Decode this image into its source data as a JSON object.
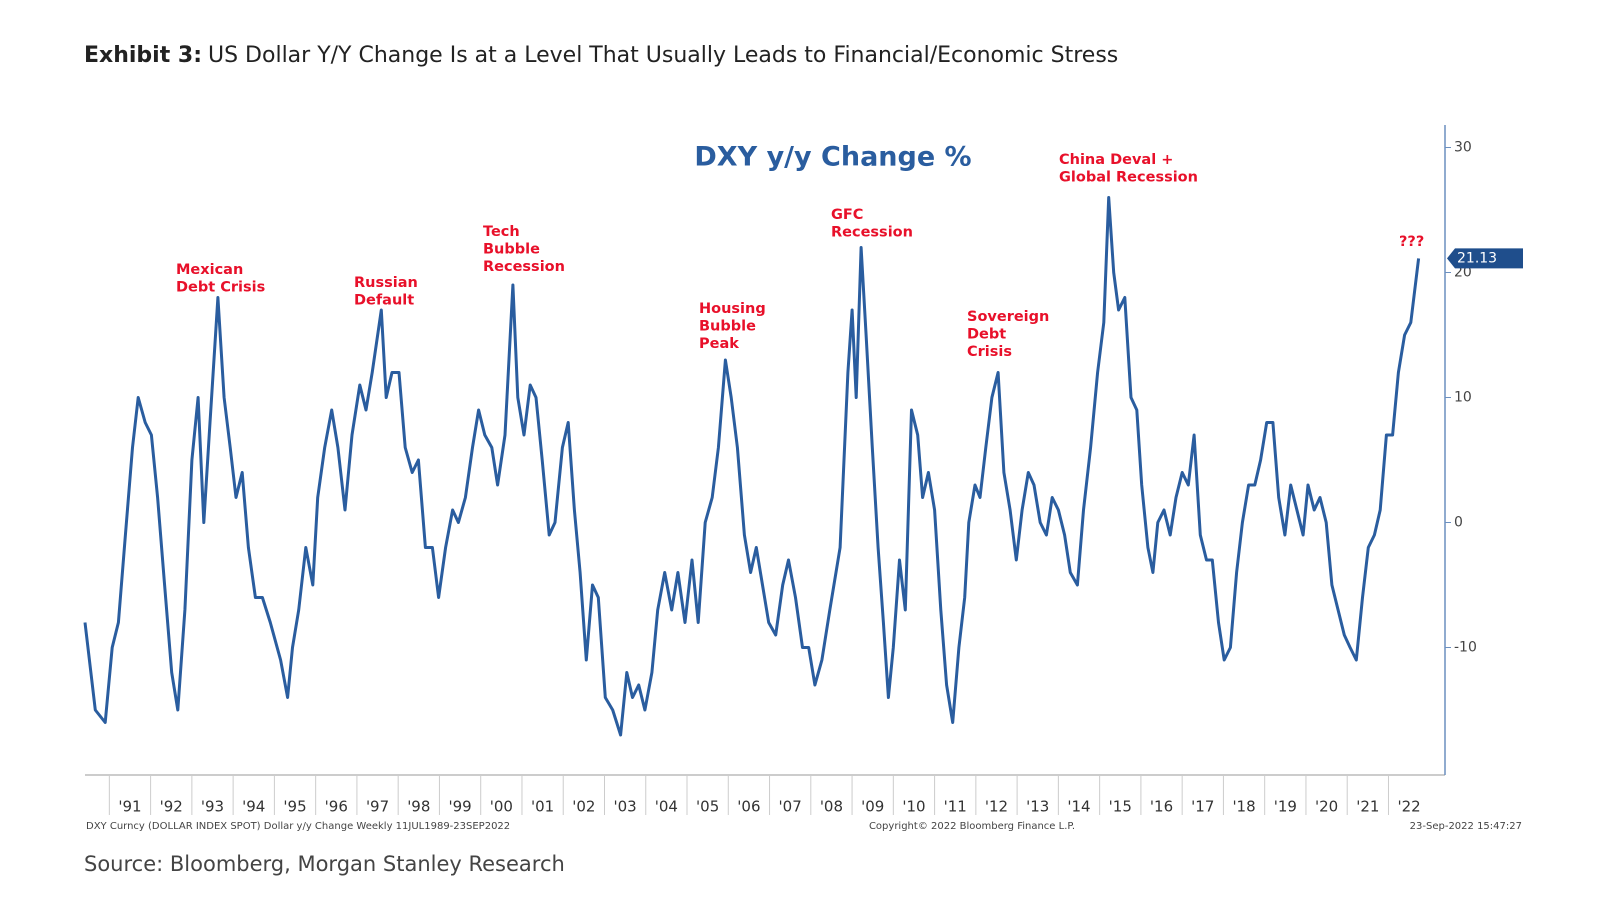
{
  "chart_data": {
    "type": "line",
    "exhibit_label": "Exhibit 3:",
    "title": "US Dollar Y/Y Change Is at a Level That Usually Leads to Financial/Economic Stress",
    "subtitle": "DXY y/y Change %",
    "source": "Source: Bloomberg, Morgan Stanley Research",
    "footnote_left": "DXY Curncy (DOLLAR INDEX SPOT) Dollar y/y Change  Weekly 11JUL1989-23SEP2022",
    "footnote_center": "Copyright© 2022 Bloomberg Finance L.P.",
    "footnote_right": "23-Sep-2022 15:47:27",
    "annotations": [
      {
        "lines": [
          "Mexican",
          "Debt Crisis"
        ]
      },
      {
        "lines": [
          "Russian",
          "Default"
        ]
      },
      {
        "lines": [
          "Tech",
          "Bubble",
          "Recession"
        ]
      },
      {
        "lines": [
          "Housing",
          "Bubble",
          "Peak"
        ]
      },
      {
        "lines": [
          "GFC",
          "Recession"
        ]
      },
      {
        "lines": [
          "Sovereign",
          "Debt",
          "Crisis"
        ]
      },
      {
        "lines": [
          "China Deval +",
          "Global Recession"
        ]
      },
      {
        "lines": [
          "???"
        ]
      }
    ],
    "annotation_color": "#e8102a",
    "x": [
      1990.41,
      1990.66,
      1990.9,
      1991.07,
      1991.22,
      1991.39,
      1991.56,
      1991.7,
      1991.87,
      1992.02,
      1992.17,
      1992.34,
      1992.51,
      1992.66,
      1992.83,
      1993.0,
      1993.15,
      1993.29,
      1993.44,
      1993.63,
      1993.78,
      1993.93,
      1994.07,
      1994.22,
      1994.37,
      1994.54,
      1994.71,
      1994.9,
      1995.15,
      1995.32,
      1995.44,
      1995.59,
      1995.76,
      1995.93,
      1996.05,
      1996.22,
      1996.39,
      1996.54,
      1996.71,
      1996.88,
      1997.07,
      1997.22,
      1997.37,
      1997.59,
      1997.71,
      1997.85,
      1998.02,
      1998.17,
      1998.34,
      1998.49,
      1998.66,
      1998.83,
      1998.98,
      1999.15,
      1999.32,
      1999.46,
      1999.63,
      1999.8,
      1999.95,
      2000.1,
      2000.27,
      2000.41,
      2000.59,
      2000.78,
      2000.9,
      2001.05,
      2001.2,
      2001.34,
      2001.49,
      2001.66,
      2001.8,
      2001.98,
      2002.12,
      2002.27,
      2002.41,
      2002.56,
      2002.71,
      2002.85,
      2003.02,
      2003.2,
      2003.39,
      2003.54,
      2003.68,
      2003.83,
      2003.98,
      2004.15,
      2004.29,
      2004.46,
      2004.63,
      2004.78,
      2004.95,
      2005.12,
      2005.27,
      2005.44,
      2005.61,
      2005.76,
      2005.93,
      2006.07,
      2006.22,
      2006.39,
      2006.54,
      2006.68,
      2006.83,
      2006.98,
      2007.15,
      2007.32,
      2007.46,
      2007.63,
      2007.8,
      2007.95,
      2008.1,
      2008.27,
      2008.46,
      2008.71,
      2008.9,
      2009.0,
      2009.1,
      2009.22,
      2009.34,
      2009.49,
      2009.63,
      2009.76,
      2009.88,
      2010.0,
      2010.15,
      2010.29,
      2010.44,
      2010.59,
      2010.71,
      2010.85,
      2011.0,
      2011.15,
      2011.29,
      2011.44,
      2011.59,
      2011.73,
      2011.83,
      2011.98,
      2012.1,
      2012.24,
      2012.39,
      2012.54,
      2012.68,
      2012.83,
      2012.98,
      2013.12,
      2013.27,
      2013.41,
      2013.56,
      2013.71,
      2013.85,
      2014.0,
      2014.15,
      2014.29,
      2014.46,
      2014.61,
      2014.78,
      2014.95,
      2015.1,
      2015.22,
      2015.34,
      2015.46,
      2015.61,
      2015.76,
      2015.9,
      2016.02,
      2016.17,
      2016.29,
      2016.41,
      2016.56,
      2016.71,
      2016.85,
      2017.0,
      2017.15,
      2017.29,
      2017.44,
      2017.59,
      2017.73,
      2017.88,
      2018.02,
      2018.17,
      2018.32,
      2018.46,
      2018.61,
      2018.76,
      2018.9,
      2019.05,
      2019.2,
      2019.34,
      2019.49,
      2019.63,
      2019.78,
      2019.93,
      2020.05,
      2020.2,
      2020.34,
      2020.49,
      2020.63,
      2020.78,
      2020.93,
      2021.07,
      2021.22,
      2021.37,
      2021.51,
      2021.66,
      2021.8,
      2021.95,
      2022.1,
      2022.24,
      2022.39,
      2022.54,
      2022.73
    ],
    "series": [
      {
        "name": "DXY y/y Change %",
        "color": "#2a5d9f",
        "values": [
          -8,
          -15,
          -16,
          -10,
          -8,
          -1,
          6,
          10,
          8,
          7,
          2,
          -5,
          -12,
          -15,
          -7,
          5,
          10,
          0,
          8,
          18,
          10,
          6,
          2,
          4,
          -2,
          -6,
          -6,
          -8,
          -11,
          -14,
          -10,
          -7,
          -2,
          -5,
          2,
          6,
          9,
          6,
          1,
          7,
          11,
          9,
          12,
          17,
          10,
          12,
          12,
          6,
          4,
          5,
          -2,
          -2,
          -6,
          -2,
          1,
          0,
          2,
          6,
          9,
          7,
          6,
          3,
          7,
          19,
          10,
          7,
          11,
          10,
          5,
          -1,
          0,
          6,
          8,
          1,
          -4,
          -11,
          -5,
          -6,
          -14,
          -15,
          -17,
          -12,
          -14,
          -13,
          -15,
          -12,
          -7,
          -4,
          -7,
          -4,
          -8,
          -3,
          -8,
          0,
          2,
          6,
          13,
          10,
          6,
          -1,
          -4,
          -2,
          -5,
          -8,
          -9,
          -5,
          -3,
          -6,
          -10,
          -10,
          -13,
          -11,
          -7,
          -2,
          12,
          17,
          10,
          22,
          15,
          6,
          -2,
          -8,
          -14,
          -10,
          -3,
          -7,
          9,
          7,
          2,
          4,
          1,
          -7,
          -13,
          -16,
          -10,
          -6,
          0,
          3,
          2,
          6,
          10,
          12,
          4,
          1,
          -3,
          1,
          4,
          3,
          0,
          -1,
          2,
          1,
          -1,
          -4,
          -5,
          1,
          6,
          12,
          16,
          26,
          20,
          17,
          18,
          10,
          9,
          3,
          -2,
          -4,
          0,
          1,
          -1,
          2,
          4,
          3,
          7,
          -1,
          -3,
          -3,
          -8,
          -11,
          -10,
          -4,
          0,
          3,
          3,
          5,
          8,
          8,
          2,
          -1,
          3,
          1,
          -1,
          3,
          1,
          2,
          0,
          -5,
          -7,
          -9,
          -10,
          -11,
          -6,
          -2,
          -1,
          1,
          7,
          7,
          12,
          15,
          16,
          21.13
        ]
      }
    ],
    "xlim": [
      1990.41,
      2023.37
    ],
    "xticks": [
      {
        "value": 1991,
        "label": "'91"
      },
      {
        "value": 1992,
        "label": "'92"
      },
      {
        "value": 1993,
        "label": "'93"
      },
      {
        "value": 1994,
        "label": "'94"
      },
      {
        "value": 1995,
        "label": "'95"
      },
      {
        "value": 1996,
        "label": "'96"
      },
      {
        "value": 1997,
        "label": "'97"
      },
      {
        "value": 1998,
        "label": "'98"
      },
      {
        "value": 1999,
        "label": "'99"
      },
      {
        "value": 2000,
        "label": "'00"
      },
      {
        "value": 2001,
        "label": "'01"
      },
      {
        "value": 2002,
        "label": "'02"
      },
      {
        "value": 2003,
        "label": "'03"
      },
      {
        "value": 2004,
        "label": "'04"
      },
      {
        "value": 2005,
        "label": "'05"
      },
      {
        "value": 2006,
        "label": "'06"
      },
      {
        "value": 2007,
        "label": "'07"
      },
      {
        "value": 2008,
        "label": "'08"
      },
      {
        "value": 2009,
        "label": "'09"
      },
      {
        "value": 2010,
        "label": "'10"
      },
      {
        "value": 2011,
        "label": "'11"
      },
      {
        "value": 2012,
        "label": "'12"
      },
      {
        "value": 2013,
        "label": "'13"
      },
      {
        "value": 2014,
        "label": "'14"
      },
      {
        "value": 2015,
        "label": "'15"
      },
      {
        "value": 2016,
        "label": "'16"
      },
      {
        "value": 2017,
        "label": "'17"
      },
      {
        "value": 2018,
        "label": "'18"
      },
      {
        "value": 2019,
        "label": "'19"
      },
      {
        "value": 2020,
        "label": "'20"
      },
      {
        "value": 2021,
        "label": "'21"
      },
      {
        "value": 2022,
        "label": "'22"
      }
    ],
    "ylim": [
      -20.2,
      31.8
    ],
    "yticks": [
      -10,
      0,
      10,
      20,
      30
    ],
    "y_axis_side": "right",
    "grid": false
  }
}
